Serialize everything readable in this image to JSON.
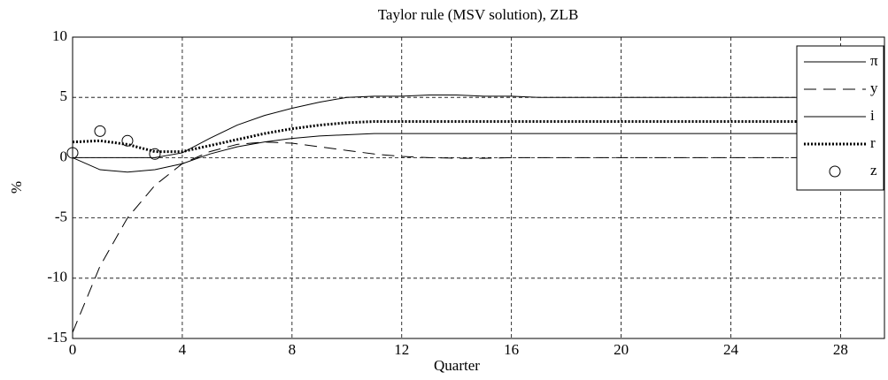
{
  "chart_data": {
    "type": "line",
    "title": "Taylor rule (MSV solution), ZLB",
    "x_label": "Quarter",
    "y_label": "%",
    "x": [
      0,
      1,
      2,
      3,
      4,
      5,
      6,
      7,
      8,
      9,
      10,
      11,
      12,
      13,
      14,
      15,
      16,
      17,
      18,
      19,
      20,
      21,
      22,
      23,
      24,
      25,
      26,
      27,
      28,
      29
    ],
    "series": [
      {
        "name": "π",
        "color": "#000000",
        "style": "solid",
        "values": [
          0,
          -1.0,
          -1.2,
          -1.0,
          -0.5,
          0.3,
          0.9,
          1.3,
          1.6,
          1.8,
          1.9,
          2.0,
          2.0,
          2.0,
          2.0,
          2.0,
          2.0,
          2.0,
          2.0,
          2.0,
          2.0,
          2.0,
          2.0,
          2.0,
          2.0,
          2.0,
          2.0,
          2.0,
          2.0,
          2.0
        ]
      },
      {
        "name": "y",
        "color": "#000000",
        "style": "dashed",
        "values": [
          -14.5,
          -9,
          -5,
          -2.3,
          -0.5,
          0.5,
          1.1,
          1.3,
          1.2,
          0.9,
          0.6,
          0.3,
          0.1,
          0,
          -0.05,
          -0.05,
          0,
          0,
          0,
          0,
          0,
          0,
          0,
          0,
          0,
          0,
          0,
          0,
          0,
          0
        ]
      },
      {
        "name": "i",
        "color": "#000000",
        "style": "solid",
        "values": [
          0,
          0,
          0,
          0,
          0.4,
          1.6,
          2.7,
          3.5,
          4.1,
          4.6,
          5.0,
          5.1,
          5.1,
          5.2,
          5.2,
          5.1,
          5.1,
          5.0,
          5.0,
          5.0,
          5.0,
          5.0,
          5.0,
          5.0,
          5.0,
          5.0,
          5.0,
          5.0,
          5.0,
          5.0
        ]
      },
      {
        "name": "r",
        "color": "#000000",
        "style": "dotted",
        "values": [
          1.3,
          1.4,
          1.1,
          0.5,
          0.5,
          1.0,
          1.5,
          2.0,
          2.4,
          2.7,
          2.9,
          3.0,
          3.0,
          3.0,
          3.0,
          3.0,
          3.0,
          3.0,
          3.0,
          3.0,
          3.0,
          3.0,
          3.0,
          3.0,
          3.0,
          3.0,
          3.0,
          3.0,
          3.0,
          3.0
        ]
      },
      {
        "name": "z",
        "color": "#000000",
        "style": "markers",
        "values": [
          0.4,
          2.2,
          1.4,
          0.3,
          null,
          null,
          null,
          null,
          null,
          null,
          null,
          null,
          null,
          null,
          null,
          null,
          null,
          null,
          null,
          null,
          null,
          null,
          null,
          null,
          null,
          null,
          null,
          null,
          null,
          null
        ]
      }
    ],
    "xlim": [
      0,
      29.6
    ],
    "xticks": [
      0,
      4,
      8,
      12,
      16,
      20,
      24,
      28
    ],
    "ylim": [
      -15,
      10
    ],
    "yticks": [
      -15,
      -10,
      -5,
      0,
      5,
      10
    ],
    "grid": true,
    "legend": "upper right"
  }
}
